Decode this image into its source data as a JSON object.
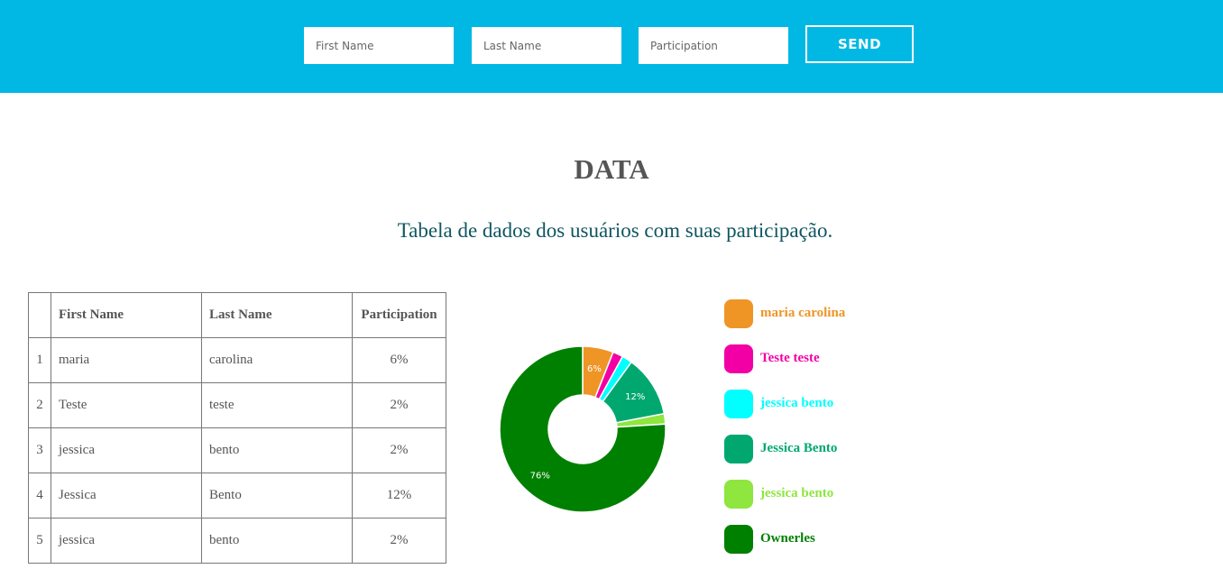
{
  "form": {
    "first_name_placeholder": "First Name",
    "last_name_placeholder": "Last Name",
    "participation_placeholder": "Participation",
    "send_label": "SEND"
  },
  "header": {
    "title": "DATA",
    "subtitle": "Tabela de dados dos usuários com suas participação."
  },
  "table": {
    "columns": [
      "",
      "First Name",
      "Last Name",
      "Participation"
    ],
    "rows": [
      {
        "index": "1",
        "first": "maria",
        "last": "carolina",
        "participation": "6%"
      },
      {
        "index": "2",
        "first": "Teste",
        "last": "teste",
        "participation": "2%"
      },
      {
        "index": "3",
        "first": "jessica",
        "last": "bento",
        "participation": "2%"
      },
      {
        "index": "4",
        "first": "Jessica",
        "last": "Bento",
        "participation": "12%"
      },
      {
        "index": "5",
        "first": "jessica",
        "last": "bento",
        "participation": "2%"
      }
    ]
  },
  "chart_data": {
    "type": "pie",
    "categories": [
      "maria carolina",
      "Teste teste",
      "jessica bento",
      "Jessica Bento",
      "jessica bento",
      "Ownerles"
    ],
    "values": [
      6,
      2,
      2,
      12,
      2,
      76
    ],
    "data_labels": [
      "6%",
      "",
      "",
      "12%",
      "",
      "76%"
    ],
    "colors": [
      "#ee9526",
      "#f200a5",
      "#00ffff",
      "#00a870",
      "#8ee63e",
      "#008000"
    ],
    "donut": true,
    "legend": "right"
  }
}
